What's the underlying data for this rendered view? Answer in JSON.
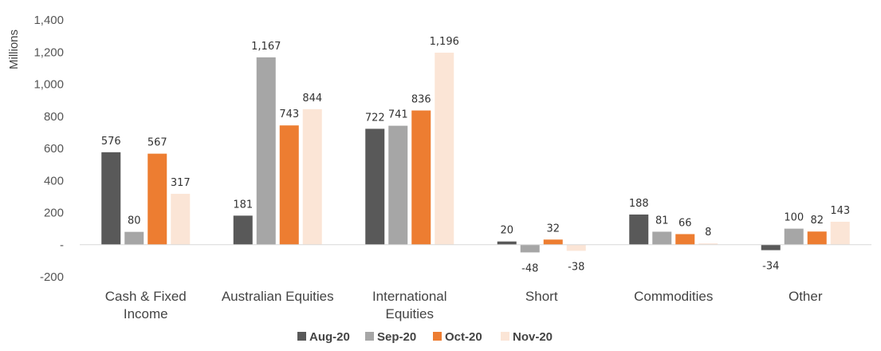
{
  "chart_data": {
    "type": "bar",
    "ylabel": "Millions",
    "ylim": [
      -200,
      1400
    ],
    "yticks": [
      1400,
      1200,
      1000,
      800,
      600,
      400,
      200,
      0,
      -200
    ],
    "ytick_labels": [
      "1,400",
      "1,200",
      "1,000",
      "800",
      "600",
      "400",
      "200",
      "-",
      "-200"
    ],
    "categories": [
      [
        "Cash & Fixed",
        "Income"
      ],
      [
        "Australian Equities"
      ],
      [
        "International",
        "Equities"
      ],
      [
        "Short"
      ],
      [
        "Commodities"
      ],
      [
        "Other"
      ]
    ],
    "series": [
      {
        "name": "Aug-20",
        "color": "#595959",
        "values": [
          576,
          181,
          722,
          20,
          188,
          -34
        ],
        "labels": [
          "576",
          "181",
          "722",
          "20",
          "188",
          "-34"
        ]
      },
      {
        "name": "Sep-20",
        "color": "#a6a6a6",
        "values": [
          80,
          1167,
          741,
          -48,
          81,
          100
        ],
        "labels": [
          "80",
          "1,167",
          "741",
          "-48",
          "81",
          "100"
        ]
      },
      {
        "name": "Oct-20",
        "color": "#ed7d31",
        "values": [
          567,
          743,
          836,
          32,
          66,
          82
        ],
        "labels": [
          "567",
          "743",
          "836",
          "32",
          "66",
          "82"
        ]
      },
      {
        "name": "Nov-20",
        "color": "#fbe5d6",
        "values": [
          317,
          844,
          1196,
          -38,
          8,
          143
        ],
        "labels": [
          "317",
          "844",
          "1,196",
          "-38",
          "8",
          "143"
        ]
      }
    ],
    "legend_position": "bottom",
    "grid": false
  }
}
